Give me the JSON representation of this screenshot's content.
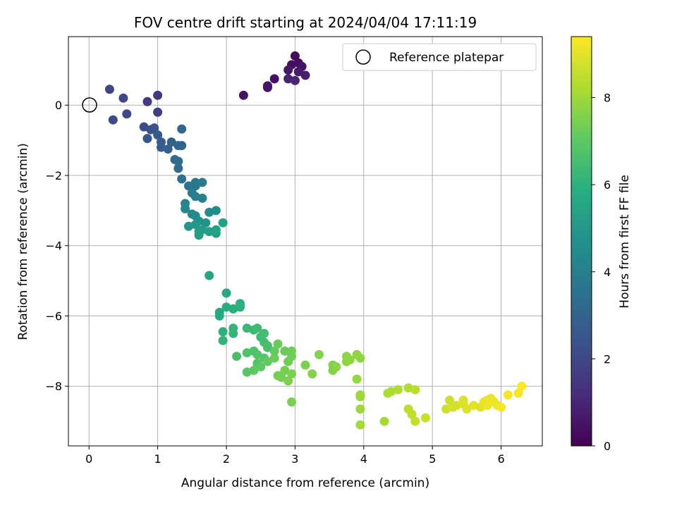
{
  "chart_data": {
    "type": "scatter",
    "title": "FOV centre drift starting at 2024/04/04 17:11:19",
    "xlabel": "Angular distance from reference (arcmin)",
    "ylabel": "Rotation from reference (arcmin)",
    "xlim": [
      -0.3,
      6.6
    ],
    "ylim": [
      -9.7,
      1.95
    ],
    "xticks": [
      0,
      1,
      2,
      3,
      4,
      5,
      6
    ],
    "yticks": [
      -8,
      -6,
      -4,
      -2,
      0
    ],
    "xtick_labels": [
      "0",
      "1",
      "2",
      "3",
      "4",
      "5",
      "6"
    ],
    "ytick_labels": [
      "−8",
      "−6",
      "−4",
      "−2",
      "0"
    ],
    "grid": true,
    "legend": {
      "placement": "top-right",
      "entries": [
        "Reference platepar"
      ]
    },
    "reference_point": {
      "x": 0,
      "y": 0,
      "label": "Reference platepar"
    },
    "colorbar": {
      "label": "Hours from first FF file",
      "range": [
        0,
        9.4
      ],
      "ticks": [
        0,
        2,
        4,
        6,
        8
      ],
      "tick_labels": [
        "0",
        "2",
        "4",
        "6",
        "8"
      ],
      "colormap": "viridis"
    },
    "points": [
      [
        3.0,
        1.4,
        0.2
      ],
      [
        3.05,
        1.2,
        0.3
      ],
      [
        2.95,
        1.15,
        0.4
      ],
      [
        3.1,
        1.1,
        0.5
      ],
      [
        2.9,
        1.0,
        0.6
      ],
      [
        3.05,
        0.95,
        0.7
      ],
      [
        3.15,
        0.85,
        0.8
      ],
      [
        2.9,
        0.75,
        0.9
      ],
      [
        3.0,
        0.7,
        1.0
      ],
      [
        2.7,
        0.75,
        0.4
      ],
      [
        2.6,
        0.55,
        0.5
      ],
      [
        2.6,
        0.5,
        0.6
      ],
      [
        2.25,
        0.28,
        0.5
      ],
      [
        1.0,
        0.28,
        1.5
      ],
      [
        0.85,
        0.1,
        1.6
      ],
      [
        1.0,
        -0.2,
        1.7
      ],
      [
        0.3,
        0.45,
        1.9
      ],
      [
        0.5,
        0.2,
        2.0
      ],
      [
        0.55,
        -0.25,
        2.1
      ],
      [
        0.35,
        -0.42,
        2.1
      ],
      [
        0.8,
        -0.62,
        2.2
      ],
      [
        0.9,
        -0.7,
        2.3
      ],
      [
        0.95,
        -0.65,
        2.4
      ],
      [
        0.85,
        -0.95,
        2.5
      ],
      [
        1.0,
        -0.85,
        2.6
      ],
      [
        1.05,
        -1.05,
        2.7
      ],
      [
        1.05,
        -1.2,
        2.8
      ],
      [
        1.15,
        -1.25,
        2.9
      ],
      [
        1.2,
        -1.05,
        2.9
      ],
      [
        1.3,
        -1.15,
        3.0
      ],
      [
        1.35,
        -1.15,
        3.1
      ],
      [
        1.35,
        -0.68,
        3.0
      ],
      [
        1.25,
        -1.55,
        3.2
      ],
      [
        1.3,
        -1.6,
        3.3
      ],
      [
        1.3,
        -1.8,
        3.3
      ],
      [
        1.35,
        -2.1,
        3.5
      ],
      [
        1.45,
        -2.3,
        3.6
      ],
      [
        1.55,
        -2.2,
        3.7
      ],
      [
        1.55,
        -2.3,
        3.8
      ],
      [
        1.65,
        -2.2,
        3.9
      ],
      [
        1.5,
        -2.5,
        3.9
      ],
      [
        1.55,
        -2.6,
        4.0
      ],
      [
        1.65,
        -2.65,
        4.1
      ],
      [
        1.4,
        -2.8,
        4.2
      ],
      [
        1.4,
        -2.95,
        4.3
      ],
      [
        1.5,
        -3.1,
        4.4
      ],
      [
        1.55,
        -3.15,
        4.5
      ],
      [
        1.75,
        -3.05,
        4.5
      ],
      [
        1.85,
        -3.0,
        4.6
      ],
      [
        1.6,
        -3.3,
        4.7
      ],
      [
        1.7,
        -3.35,
        4.8
      ],
      [
        1.45,
        -3.45,
        4.9
      ],
      [
        1.55,
        -3.4,
        5.0
      ],
      [
        1.6,
        -3.6,
        5.1
      ],
      [
        1.65,
        -3.55,
        5.2
      ],
      [
        1.6,
        -3.7,
        5.2
      ],
      [
        1.75,
        -3.6,
        5.3
      ],
      [
        1.85,
        -3.55,
        5.3
      ],
      [
        1.85,
        -3.65,
        5.4
      ],
      [
        1.95,
        -3.35,
        5.4
      ],
      [
        1.75,
        -4.85,
        5.5
      ],
      [
        2.0,
        -5.35,
        5.6
      ],
      [
        1.9,
        -5.9,
        5.6
      ],
      [
        1.9,
        -6.0,
        5.7
      ],
      [
        2.0,
        -5.75,
        5.8
      ],
      [
        2.1,
        -5.8,
        5.8
      ],
      [
        2.2,
        -5.7,
        5.9
      ],
      [
        2.2,
        -5.65,
        5.9
      ],
      [
        2.2,
        -5.75,
        6.0
      ],
      [
        1.95,
        -6.45,
        6.0
      ],
      [
        1.95,
        -6.7,
        6.1
      ],
      [
        2.1,
        -6.5,
        6.2
      ],
      [
        2.1,
        -6.35,
        6.2
      ],
      [
        2.3,
        -6.35,
        6.3
      ],
      [
        2.4,
        -6.4,
        6.3
      ],
      [
        2.45,
        -6.35,
        6.4
      ],
      [
        2.5,
        -6.6,
        6.4
      ],
      [
        2.55,
        -6.5,
        6.5
      ],
      [
        2.55,
        -6.75,
        6.5
      ],
      [
        2.6,
        -6.9,
        6.6
      ],
      [
        2.6,
        -6.85,
        6.6
      ],
      [
        2.15,
        -7.15,
        6.6
      ],
      [
        2.3,
        -7.05,
        6.7
      ],
      [
        2.4,
        -7.0,
        6.7
      ],
      [
        2.45,
        -7.1,
        6.8
      ],
      [
        2.45,
        -7.35,
        6.8
      ],
      [
        2.55,
        -7.2,
        6.9
      ],
      [
        2.3,
        -7.6,
        6.9
      ],
      [
        2.4,
        -7.55,
        7.0
      ],
      [
        2.5,
        -7.45,
        7.0
      ],
      [
        2.6,
        -7.3,
        7.1
      ],
      [
        2.7,
        -7.0,
        7.1
      ],
      [
        2.7,
        -7.2,
        7.2
      ],
      [
        2.75,
        -6.8,
        7.2
      ],
      [
        2.85,
        -7.0,
        7.2
      ],
      [
        2.9,
        -7.3,
        7.3
      ],
      [
        2.95,
        -7.0,
        7.3
      ],
      [
        2.95,
        -7.15,
        7.3
      ],
      [
        2.85,
        -7.55,
        7.4
      ],
      [
        2.75,
        -7.7,
        7.4
      ],
      [
        2.8,
        -7.75,
        7.4
      ],
      [
        2.9,
        -7.85,
        7.5
      ],
      [
        2.95,
        -7.65,
        7.5
      ],
      [
        2.95,
        -8.45,
        7.5
      ],
      [
        3.15,
        -7.4,
        7.5
      ],
      [
        3.25,
        -7.65,
        7.6
      ],
      [
        3.35,
        -7.1,
        7.6
      ],
      [
        3.55,
        -7.4,
        7.6
      ],
      [
        3.55,
        -7.55,
        7.6
      ],
      [
        3.6,
        -7.45,
        7.7
      ],
      [
        3.75,
        -7.15,
        7.7
      ],
      [
        3.75,
        -7.3,
        7.7
      ],
      [
        3.8,
        -7.25,
        7.8
      ],
      [
        3.9,
        -7.1,
        7.8
      ],
      [
        3.95,
        -7.2,
        7.8
      ],
      [
        3.9,
        -7.8,
        7.9
      ],
      [
        3.95,
        -8.25,
        7.9
      ],
      [
        3.95,
        -8.3,
        8.0
      ],
      [
        3.95,
        -8.65,
        8.0
      ],
      [
        3.95,
        -9.1,
        8.1
      ],
      [
        4.3,
        -9.0,
        8.1
      ],
      [
        4.35,
        -8.2,
        8.2
      ],
      [
        4.4,
        -8.15,
        8.2
      ],
      [
        4.5,
        -8.1,
        8.3
      ],
      [
        4.65,
        -8.05,
        8.3
      ],
      [
        4.75,
        -8.1,
        8.4
      ],
      [
        4.65,
        -8.65,
        8.4
      ],
      [
        4.7,
        -8.8,
        8.5
      ],
      [
        4.75,
        -9.0,
        8.5
      ],
      [
        4.9,
        -8.9,
        8.6
      ],
      [
        5.2,
        -8.65,
        8.7
      ],
      [
        5.25,
        -8.4,
        8.7
      ],
      [
        5.3,
        -8.6,
        8.8
      ],
      [
        5.35,
        -8.55,
        8.8
      ],
      [
        5.45,
        -8.5,
        8.9
      ],
      [
        5.45,
        -8.4,
        8.9
      ],
      [
        5.5,
        -8.65,
        8.9
      ],
      [
        5.6,
        -8.55,
        9.0
      ],
      [
        5.7,
        -8.6,
        9.0
      ],
      [
        5.75,
        -8.45,
        9.1
      ],
      [
        5.8,
        -8.4,
        9.1
      ],
      [
        5.85,
        -8.35,
        9.1
      ],
      [
        5.9,
        -8.45,
        9.2
      ],
      [
        5.95,
        -8.55,
        9.2
      ],
      [
        5.8,
        -8.55,
        9.2
      ],
      [
        6.0,
        -8.6,
        9.3
      ],
      [
        6.1,
        -8.25,
        9.3
      ],
      [
        6.25,
        -8.2,
        9.3
      ],
      [
        6.3,
        -8.0,
        9.4
      ]
    ]
  }
}
